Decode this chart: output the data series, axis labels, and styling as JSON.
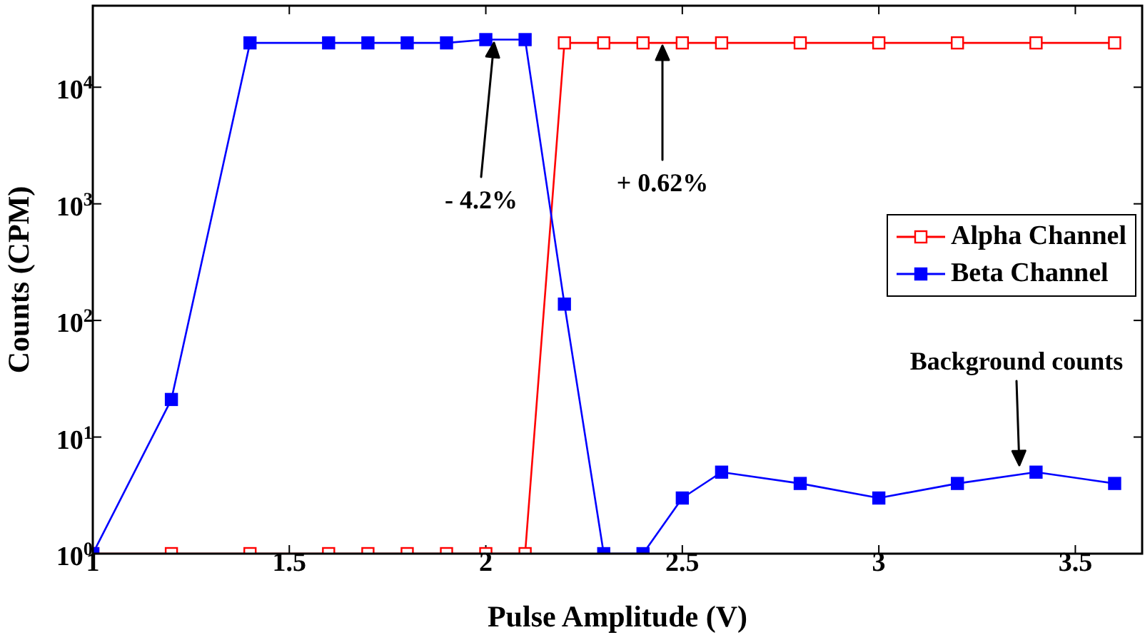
{
  "chart_data": {
    "type": "line",
    "xlabel": "Pulse Amplitude (V)",
    "ylabel": "Counts (CPM)",
    "log": "y",
    "xlim": [
      1,
      3.67
    ],
    "xticks": [
      1,
      1.5,
      2,
      2.5,
      3,
      3.5
    ],
    "ylim": [
      1,
      50000
    ],
    "yticks": [
      {
        "value": 1,
        "label": "10$^{0}$"
      },
      {
        "value": 10,
        "label": "10$^{1}$"
      },
      {
        "value": 100,
        "label": "10$^{2}$"
      },
      {
        "value": 1000,
        "label": "10$^{3}$"
      },
      {
        "value": 10000,
        "label": "10$^{4}$"
      }
    ],
    "marker": "square",
    "grid": false,
    "legend": "top right",
    "series": [
      {
        "name": "Alpha Channel",
        "color": "#ff0000",
        "x": [
          1,
          1.2,
          1.4,
          1.6,
          1.7,
          1.8,
          1.9,
          2,
          2.1,
          2.2,
          2.3,
          2.4,
          2.5,
          2.6,
          2.8,
          3,
          3.2,
          3.4,
          3.6
        ],
        "values": [
          1,
          1,
          1,
          1,
          1,
          1,
          1,
          1,
          1,
          24000,
          24000,
          24000,
          24000,
          24000,
          24000,
          24000,
          24000,
          24000,
          24000
        ]
      },
      {
        "name": "Beta Channel",
        "color": "#0000ff",
        "x": [
          1,
          1.2,
          1.4,
          1.6,
          1.7,
          1.8,
          1.9,
          2,
          2.1,
          2.2,
          2.3,
          2.4,
          2.5,
          2.6,
          2.8,
          3,
          3.2,
          3.4,
          3.6
        ],
        "values": [
          1,
          21,
          24000,
          24000,
          24000,
          24000,
          24000,
          25600,
          25600,
          138,
          1,
          1,
          3,
          5,
          4,
          3,
          4,
          5,
          4
        ]
      }
    ],
    "annotations": [
      "- 4.2%",
      "+ 0.62%",
      "Background counts"
    ]
  }
}
